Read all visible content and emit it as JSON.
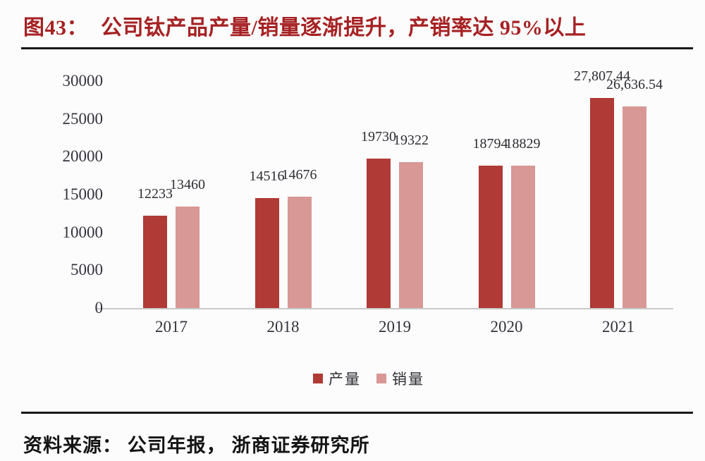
{
  "header": {
    "figure_label": "图43：",
    "title": "公司钛产品产量/销量逐渐提升，产销率达 95%以上"
  },
  "footer": {
    "source": "资料来源： 公司年报， 浙商证券研究所"
  },
  "legend": {
    "items": [
      {
        "key": "production",
        "label": "产量",
        "color": "#b03a35"
      },
      {
        "key": "sales",
        "label": "销量",
        "color": "#d89896"
      }
    ]
  },
  "colors": {
    "title_red": "#a62123",
    "production_bar": "#b03a35",
    "sales_bar": "#d89896",
    "axis_text": "#33333d",
    "axis_line": "#c9c9c9",
    "divider": "#191919",
    "background": "#fcfcfc"
  },
  "chart_data": {
    "type": "bar",
    "title": "公司钛产品产量/销量逐渐提升，产销率达 95%以上",
    "categories": [
      "2017",
      "2018",
      "2019",
      "2020",
      "2021"
    ],
    "series": [
      {
        "key": "production",
        "name": "产量",
        "color": "#b03a35",
        "values": [
          12233,
          14516,
          19730,
          18794,
          27807.44
        ],
        "labels": [
          "12233",
          "14516",
          "19730",
          "18794",
          "27,807.44"
        ]
      },
      {
        "key": "sales",
        "name": "销量",
        "color": "#d89896",
        "values": [
          13460,
          14676,
          19322,
          18829,
          26636.54
        ],
        "labels": [
          "13460",
          "14676",
          "19322",
          "18829",
          "26,636.54"
        ]
      }
    ],
    "xlabel": "",
    "ylabel": "",
    "ylim": [
      0,
      30000
    ],
    "yticks": [
      30000,
      25000,
      20000,
      15000,
      10000,
      5000,
      0
    ],
    "ytick_labels": [
      "30000",
      "25000",
      "20000",
      "15000",
      "10000",
      "5000",
      "0"
    ],
    "grid": false,
    "legend_position": "bottom"
  }
}
